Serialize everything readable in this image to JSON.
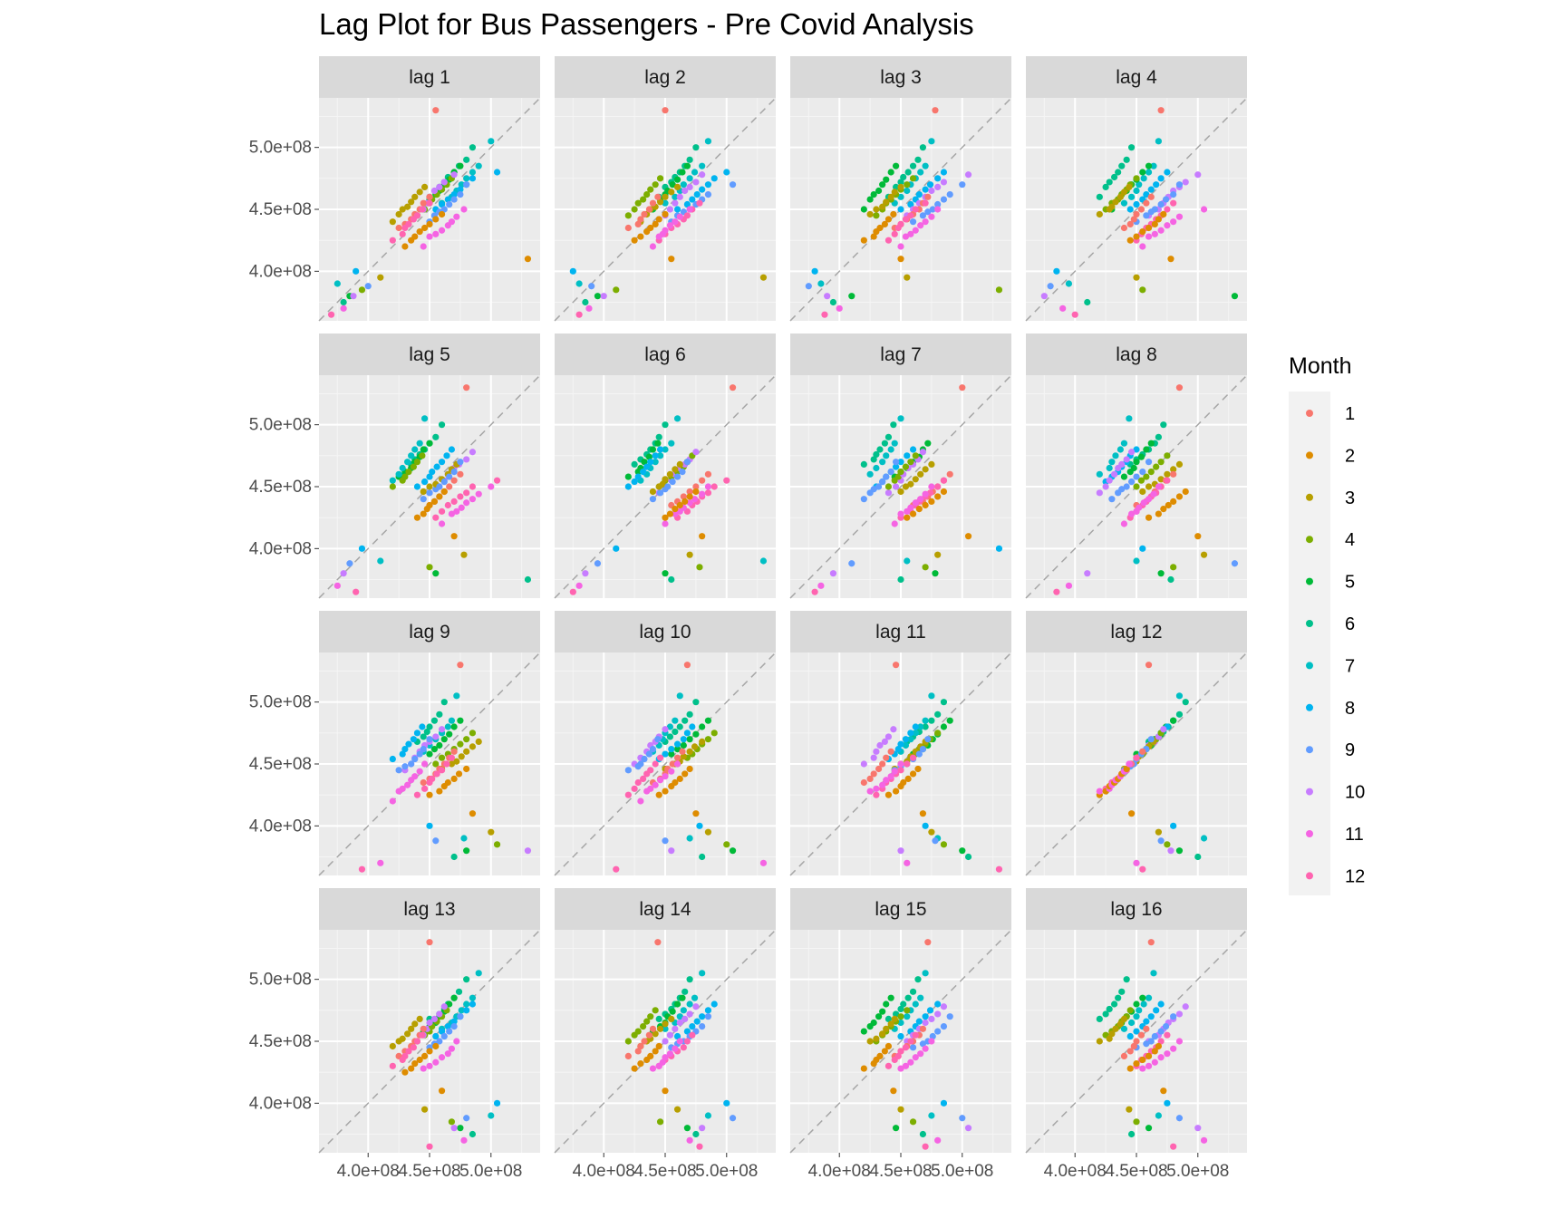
{
  "chart_data": {
    "type": "scatter",
    "title": "Lag Plot for Bus Passengers - Pre Covid Analysis",
    "xlabel": "",
    "ylabel": "",
    "xlim": [
      360000000.0,
      540000000.0
    ],
    "ylim": [
      360000000.0,
      540000000.0
    ],
    "x_ticks": [
      400000000.0,
      450000000.0,
      500000000.0
    ],
    "x_tick_labels": [
      "4.0e+08",
      "4.5e+08",
      "5.0e+08"
    ],
    "y_ticks": [
      400000000.0,
      450000000.0,
      500000000.0
    ],
    "y_tick_labels": [
      "4.0e+08",
      "4.5e+08",
      "5.0e+08"
    ],
    "grid": true,
    "reference_line": "y = x (dashed)",
    "facets": [
      "lag 1",
      "lag 2",
      "lag 3",
      "lag 4",
      "lag 5",
      "lag 6",
      "lag 7",
      "lag 8",
      "lag 9",
      "lag 10",
      "lag 11",
      "lag 12",
      "lag 13",
      "lag 14",
      "lag 15",
      "lag 16"
    ],
    "legend": {
      "title": "Month",
      "position": "right",
      "items": [
        {
          "label": "1",
          "color": "#F8766D"
        },
        {
          "label": "2",
          "color": "#DE8C00"
        },
        {
          "label": "3",
          "color": "#B79F00"
        },
        {
          "label": "4",
          "color": "#7CAE00"
        },
        {
          "label": "5",
          "color": "#00BA38"
        },
        {
          "label": "6",
          "color": "#00C08B"
        },
        {
          "label": "7",
          "color": "#00BFC4"
        },
        {
          "label": "8",
          "color": "#00B4F0"
        },
        {
          "label": "9",
          "color": "#619CFF"
        },
        {
          "label": "10",
          "color": "#C77CFF"
        },
        {
          "label": "11",
          "color": "#F564E3"
        },
        {
          "label": "12",
          "color": "#FF64B0"
        }
      ]
    },
    "series": {
      "approx_monthly_passengers": [
        430000000.0,
        420000000.0,
        440000000.0,
        445000000.0,
        450000000.0,
        460000000.0,
        455000000.0,
        450000000.0,
        440000000.0,
        445000000.0,
        420000000.0,
        425000000.0,
        435000000.0,
        425000000.0,
        446000000.0,
        450000000.0,
        458000000.0,
        468000000.0,
        460000000.0,
        454000000.0,
        445000000.0,
        450000000.0,
        428000000.0,
        430000000.0,
        438000000.0,
        428000000.0,
        450000000.0,
        455000000.0,
        462000000.0,
        472000000.0,
        465000000.0,
        458000000.0,
        448000000.0,
        455000000.0,
        430000000.0,
        435000000.0,
        442000000.0,
        432000000.0,
        452000000.0,
        458000000.0,
        465000000.0,
        476000000.0,
        470000000.0,
        462000000.0,
        450000000.0,
        460000000.0,
        433000000.0,
        438000000.0,
        446000000.0,
        435000000.0,
        456000000.0,
        462000000.0,
        470000000.0,
        480000000.0,
        475000000.0,
        466000000.0,
        454000000.0,
        465000000.0,
        437000000.0,
        442000000.0,
        450000000.0,
        438000000.0,
        460000000.0,
        466000000.0,
        474000000.0,
        485000000.0,
        480000000.0,
        470000000.0,
        458000000.0,
        468000000.0,
        440000000.0,
        445000000.0,
        455000000.0,
        442000000.0,
        464000000.0,
        470000000.0,
        480000000.0,
        490000000.0,
        485000000.0,
        475000000.0,
        462000000.0,
        472000000.0,
        444000000.0,
        450000000.0,
        460000000.0,
        446000000.0,
        468000000.0,
        475000000.0,
        485000000.0,
        500000000.0,
        505000000.0,
        480000000.0,
        470000000.0,
        478000000.0,
        450000000.0,
        455000000.0,
        530000000.0,
        410000000.0,
        395000000.0,
        385000000.0,
        380000000.0,
        375000000.0,
        390000000.0,
        400000000.0,
        388000000.0,
        380000000.0,
        370000000.0,
        365000000.0
      ]
    }
  }
}
